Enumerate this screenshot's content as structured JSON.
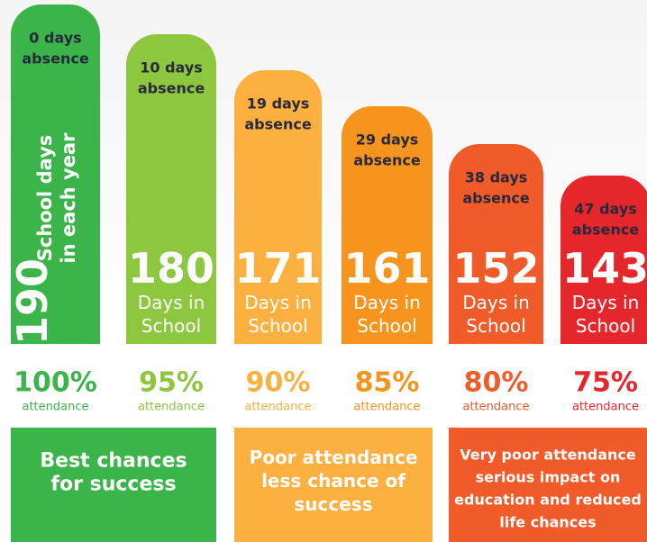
{
  "columns": [
    {
      "absence": [
        "0 days",
        "absence"
      ],
      "days": "190",
      "days_label": [
        "School days",
        "in each year"
      ],
      "percent": "100%",
      "attendance": "attendance"
    },
    {
      "absence": [
        "10 days",
        "absence"
      ],
      "days": "180",
      "days_label": [
        "Days in",
        "School"
      ],
      "percent": "95%",
      "attendance": "attendance"
    },
    {
      "absence": [
        "19 days",
        "absence"
      ],
      "days": "171",
      "days_label": [
        "Days in",
        "School"
      ],
      "percent": "90%",
      "attendance": "attendance"
    },
    {
      "absence": [
        "29 days",
        "absence"
      ],
      "days": "161",
      "days_label": [
        "Days in",
        "School"
      ],
      "percent": "85%",
      "attendance": "attendance"
    },
    {
      "absence": [
        "38 days",
        "absence"
      ],
      "days": "152",
      "days_label": [
        "Days in",
        "School"
      ],
      "percent": "80%",
      "attendance": "attendance"
    },
    {
      "absence": [
        "47 days",
        "absence"
      ],
      "days": "143",
      "days_label": [
        "Days in",
        "School"
      ],
      "percent": "75%",
      "attendance": "attendance"
    }
  ],
  "bands": [
    {
      "lines": [
        "Best chances",
        "for success"
      ]
    },
    {
      "lines": [
        "Poor attendance",
        "less chance of",
        "success"
      ]
    },
    {
      "lines": [
        "Very poor attendance",
        "serious impact on",
        "education and reduced",
        "life chances"
      ]
    }
  ]
}
